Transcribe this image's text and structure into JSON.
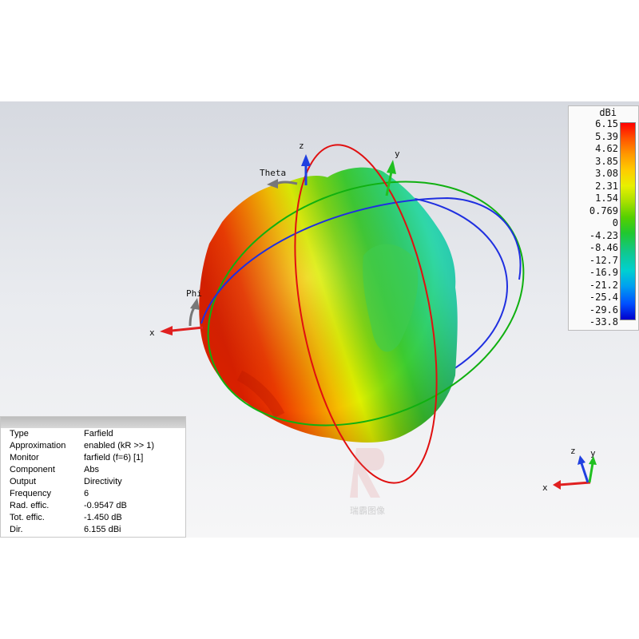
{
  "legend": {
    "unit": "dBi",
    "ticks": [
      "6.15",
      "5.39",
      "4.62",
      "3.85",
      "3.08",
      "2.31",
      "1.54",
      "0.769",
      "0",
      "-4.23",
      "-8.46",
      "-12.7",
      "-16.9",
      "-21.2",
      "-25.4",
      "-29.6",
      "-33.8"
    ],
    "colors": {
      "max": "#ff0000",
      "mid": "#e8f000",
      "zero": "#20c830",
      "low": "#00d0d0",
      "min": "#0000cc"
    }
  },
  "axes": {
    "z": "z",
    "y": "y",
    "x": "x",
    "theta": "Theta",
    "phi": "Phi",
    "colors": {
      "x": "#e02020",
      "y": "#20c020",
      "z": "#2040e0",
      "spherical": "#777777"
    }
  },
  "circles": {
    "colors": {
      "red": "#e01010",
      "green": "#10b010",
      "blue": "#1f2fe0"
    }
  },
  "mini_axes": {
    "z": "z",
    "y": "y",
    "x": "x"
  },
  "info": {
    "rows": [
      {
        "key": "Type",
        "value": "Farfield"
      },
      {
        "key": "Approximation",
        "value": "enabled (kR >> 1)"
      },
      {
        "key": "Monitor",
        "value": "farfield (f=6) [1]"
      },
      {
        "key": "Component",
        "value": "Abs"
      },
      {
        "key": "Output",
        "value": "Directivity"
      },
      {
        "key": "Frequency",
        "value": "6"
      },
      {
        "key": "Rad. effic.",
        "value": "-0.9547 dB"
      },
      {
        "key": "Tot. effic.",
        "value": "-1.450 dB"
      },
      {
        "key": "Dir.",
        "value": "6.155 dBi"
      }
    ]
  },
  "watermark": {
    "text": "瑞霸图像"
  }
}
